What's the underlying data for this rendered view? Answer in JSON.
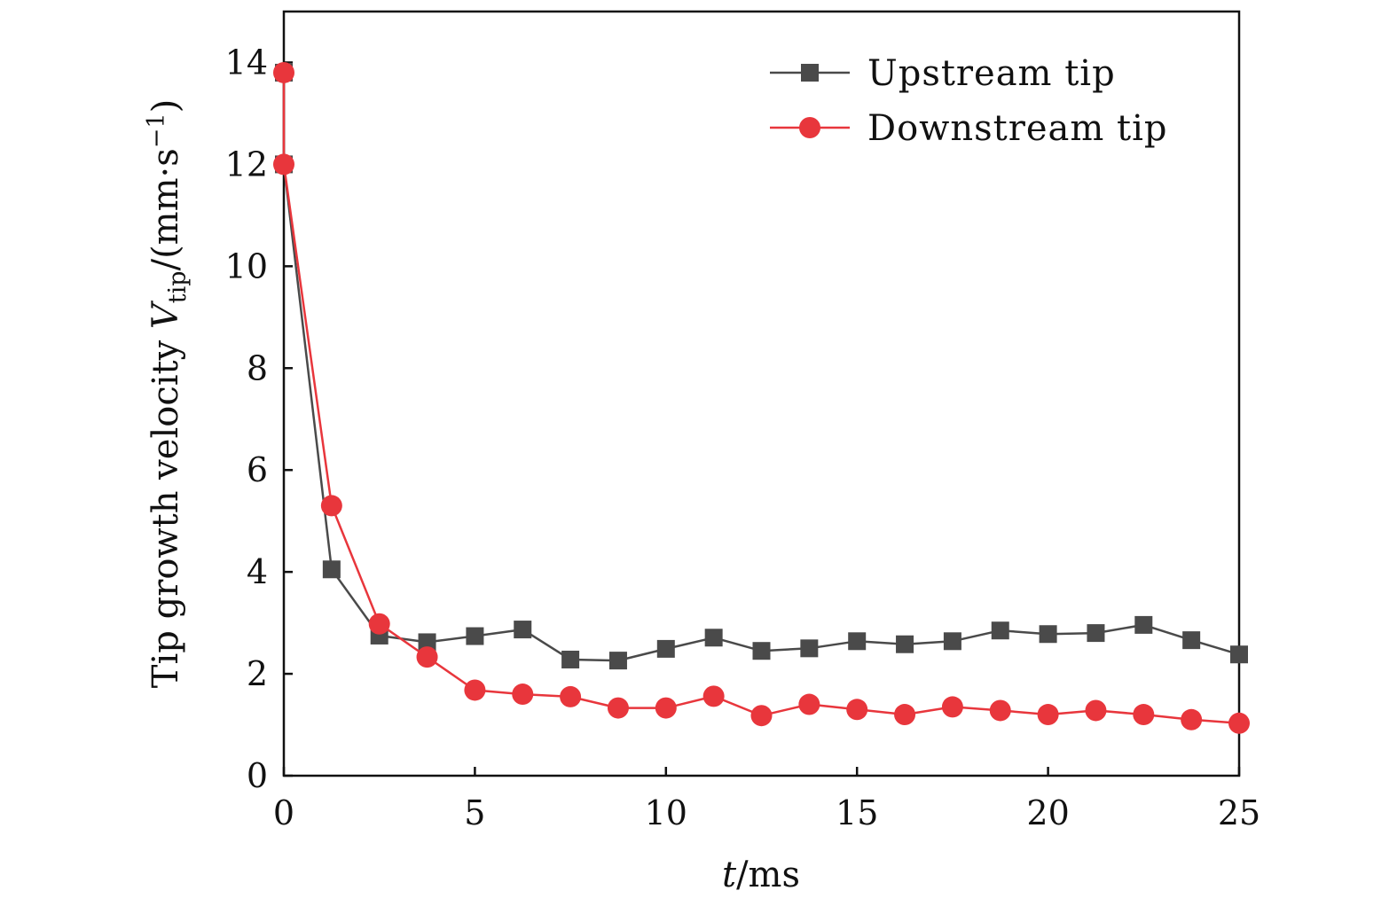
{
  "chart_data": {
    "type": "line",
    "title": "",
    "xlabel": {
      "var": "t",
      "unit": "/ms"
    },
    "ylabel": {
      "prefix": "Tip growth velocity ",
      "var": "V",
      "sub": "tip",
      "unit": "/(mm·s",
      "sup": "−1",
      "close": ")"
    },
    "xlim": [
      0,
      25
    ],
    "ylim": [
      0,
      15
    ],
    "xticks": [
      0,
      5,
      10,
      15,
      20,
      25
    ],
    "yticks": [
      0,
      2,
      4,
      6,
      8,
      10,
      12,
      14
    ],
    "grid": false,
    "legend_position": "top-right",
    "series": [
      {
        "name": "Upstream tip",
        "color": "#4a4a4a",
        "marker": "square",
        "x": [
          0,
          0,
          1.25,
          2.5,
          3.75,
          5,
          6.25,
          7.5,
          8.75,
          10,
          11.25,
          12.5,
          13.75,
          15,
          16.25,
          17.5,
          18.75,
          20,
          21.25,
          22.5,
          23.75,
          25
        ],
        "y": [
          13.8,
          12.0,
          4.05,
          2.75,
          2.62,
          2.74,
          2.87,
          2.28,
          2.26,
          2.49,
          2.71,
          2.45,
          2.5,
          2.64,
          2.58,
          2.64,
          2.85,
          2.78,
          2.8,
          2.96,
          2.66,
          2.38
        ]
      },
      {
        "name": "Downstream tip",
        "color": "#e8363c",
        "marker": "circle",
        "x": [
          0,
          0,
          1.25,
          2.5,
          3.75,
          5,
          6.25,
          7.5,
          8.75,
          10,
          11.25,
          12.5,
          13.75,
          15,
          16.25,
          17.5,
          18.75,
          20,
          21.25,
          22.5,
          23.75,
          25
        ],
        "y": [
          13.8,
          12.0,
          5.3,
          2.98,
          2.33,
          1.68,
          1.6,
          1.55,
          1.33,
          1.33,
          1.56,
          1.18,
          1.4,
          1.3,
          1.2,
          1.35,
          1.28,
          1.2,
          1.28,
          1.2,
          1.1,
          1.03
        ]
      }
    ]
  }
}
